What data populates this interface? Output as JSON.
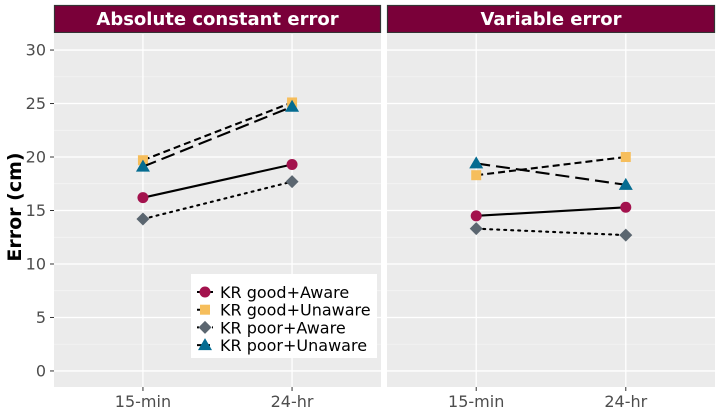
{
  "colors": {
    "strip_bg": "#7a0039",
    "panel_bg": "#ebebeb",
    "grid_major": "#ffffff",
    "grid_minor": "#f5f5f5",
    "tick_text": "#4d4d4d"
  },
  "chart_data": {
    "type": "line",
    "faceted": true,
    "ylabel": "Error (cm)",
    "xlabel": "",
    "ylim": [
      -1.5,
      31.5
    ],
    "yticks": [
      0,
      5,
      10,
      15,
      20,
      25,
      30
    ],
    "yticklabels": [
      "0",
      "5",
      "10",
      "15",
      "20",
      "25",
      "30"
    ],
    "categories": [
      "15-min",
      "24-hr"
    ],
    "grid": true,
    "legend_position": "bottom-right of left panel",
    "legend": [
      {
        "label": "KR good+Aware",
        "color": "#a3124d",
        "marker": "circle",
        "dash": "solid"
      },
      {
        "label": "KR good+Unaware",
        "color": "#f6be5c",
        "marker": "square",
        "dash": "dashed-short"
      },
      {
        "label": "KR poor+Aware",
        "color": "#5b6670",
        "marker": "diamond",
        "dash": "dotted"
      },
      {
        "label": "KR poor+Unaware",
        "color": "#056c91",
        "marker": "triangle",
        "dash": "dashed-long"
      }
    ],
    "panels": [
      {
        "title": "Absolute constant error",
        "series": [
          {
            "name": "KR good+Aware",
            "values": [
              16.2,
              19.3
            ]
          },
          {
            "name": "KR good+Unaware",
            "values": [
              19.7,
              25.1
            ]
          },
          {
            "name": "KR poor+Aware",
            "values": [
              14.2,
              17.7
            ]
          },
          {
            "name": "KR poor+Unaware",
            "values": [
              19.1,
              24.7
            ]
          }
        ]
      },
      {
        "title": "Variable error",
        "series": [
          {
            "name": "KR good+Aware",
            "values": [
              14.5,
              15.3
            ]
          },
          {
            "name": "KR good+Unaware",
            "values": [
              18.3,
              20.0
            ]
          },
          {
            "name": "KR poor+Aware",
            "values": [
              13.3,
              12.7
            ]
          },
          {
            "name": "KR poor+Unaware",
            "values": [
              19.4,
              17.4
            ]
          }
        ]
      }
    ]
  }
}
